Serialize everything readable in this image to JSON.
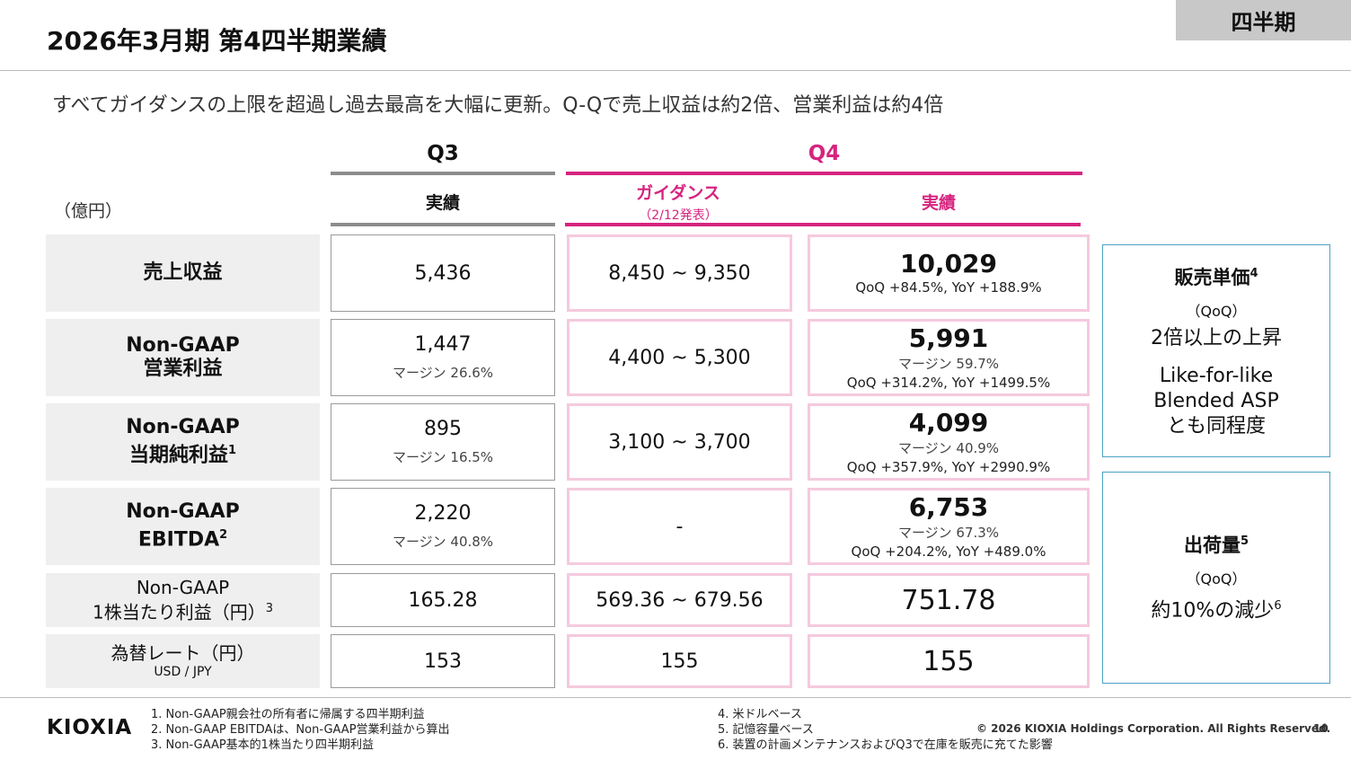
{
  "header": {
    "title": "2026年3月期 第4四半期業績",
    "tag": "四半期"
  },
  "subtitle": "すべてガイダンスの上限を超過し過去最高を大幅に更新。Q-Qで売上収益は約2倍、営業利益は約4倍",
  "table": {
    "unit": "（億円）",
    "q3_header": "Q3",
    "q4_header": "Q4",
    "q3_actual": "実績",
    "guidance": "ガイダンス",
    "guidance_note": "（2/12発表）",
    "q4_actual": "実績",
    "rows": [
      {
        "label": [
          "売上収益"
        ],
        "q3": {
          "value": "5,436"
        },
        "guidance": "8,450 ~ 9,350",
        "q4": {
          "value": "10,029",
          "growth": "QoQ +84.5%, YoY +188.9%"
        }
      },
      {
        "label": [
          "Non-GAAP",
          "営業利益"
        ],
        "q3": {
          "value": "1,447",
          "margin": "マージン 26.6%"
        },
        "guidance": "4,400 ~ 5,300",
        "q4": {
          "value": "5,991",
          "margin": "マージン 59.7%",
          "growth": "QoQ +314.2%, YoY +1499.5%"
        }
      },
      {
        "label": [
          "Non-GAAP",
          "当期純利益"
        ],
        "label_sup": "1",
        "q3": {
          "value": "895",
          "margin": "マージン 16.5%"
        },
        "guidance": "3,100 ~ 3,700",
        "q4": {
          "value": "4,099",
          "margin": "マージン 40.9%",
          "growth": "QoQ +357.9%, YoY +2990.9%"
        }
      },
      {
        "label": [
          "Non-GAAP",
          "EBITDA"
        ],
        "label_sup": "2",
        "q3": {
          "value": "2,220",
          "margin": "マージン 40.8%"
        },
        "guidance": "-",
        "q4": {
          "value": "6,753",
          "margin": "マージン 67.3%",
          "growth": "QoQ +204.2%, YoY +489.0%"
        }
      },
      {
        "label": [
          "Non-GAAP",
          "1株当たり利益（円）"
        ],
        "label_sup": "3",
        "q3": {
          "value": "165.28"
        },
        "guidance": "569.36 ~ 679.56",
        "q4": {
          "value": "751.78"
        }
      },
      {
        "label": [
          "為替レート（円）"
        ],
        "label_note": "USD / JPY",
        "q3": {
          "value": "153"
        },
        "guidance": "155",
        "q4": {
          "value": "155"
        }
      }
    ]
  },
  "side": [
    {
      "title": "販売単価",
      "title_sup": "4",
      "sub": "（QoQ）",
      "lines": [
        "2倍以上の上昇",
        "Like-for-like",
        "Blended ASP",
        "とも同程度"
      ]
    },
    {
      "title": "出荷量",
      "title_sup": "5",
      "sub": "（QoQ）",
      "lines": [
        "約10%の減少"
      ],
      "lines_sup": "6"
    }
  ],
  "footer": {
    "logo": "KIOXIA",
    "notes_left": [
      "1. Non-GAAP親会社の所有者に帰属する四半期利益",
      "2. Non-GAAP EBITDAは、Non-GAAP営業利益から算出",
      "3. Non-GAAP基本的1株当たり四半期利益"
    ],
    "notes_right": [
      "4. 米ドルベース",
      "5. 記憶容量ベース",
      "6. 装置の計画メンテナンスおよびQ3で在庫を販売に充てた影響"
    ],
    "copyright": "© 2026 KIOXIA Holdings Corporation. All Rights Reserved.",
    "page": "10"
  }
}
